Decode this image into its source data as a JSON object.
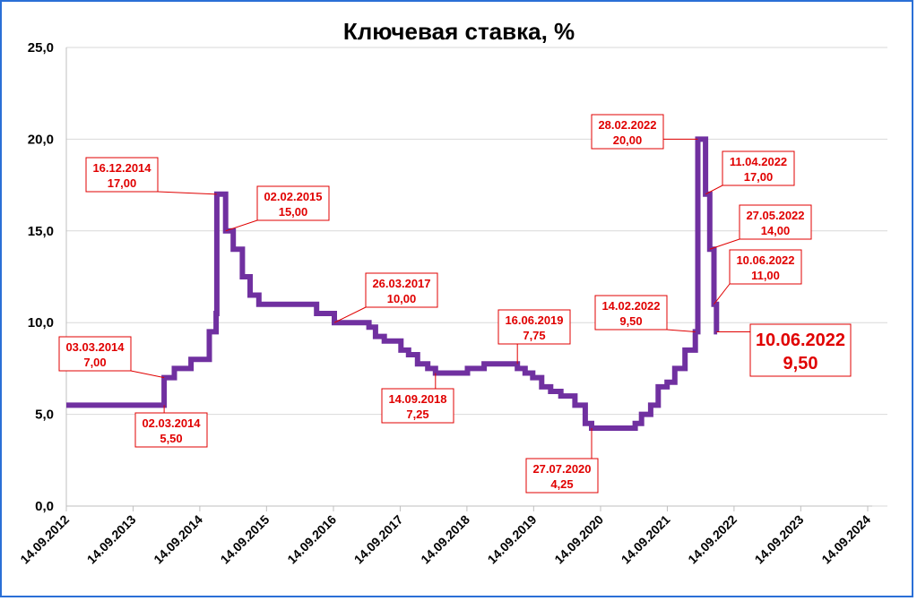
{
  "chart_data": {
    "type": "line",
    "title": "Ключевая ставка, %",
    "xlabel": "",
    "ylabel": "",
    "ylim": [
      0,
      25
    ],
    "x_range": [
      "2012-09-14",
      "2024-09-14"
    ],
    "grid": true,
    "y_ticks": [
      "0,0",
      "5,0",
      "10,0",
      "15,0",
      "20,0",
      "25,0"
    ],
    "y_tick_values": [
      0,
      5,
      10,
      15,
      20,
      25
    ],
    "x_ticks": [
      "14.09.2012",
      "14.09.2013",
      "14.09.2014",
      "14.09.2015",
      "14.09.2016",
      "14.09.2017",
      "14.09.2018",
      "14.09.2019",
      "14.09.2020",
      "14.09.2021",
      "14.09.2022",
      "14.09.2023",
      "14.09.2024"
    ],
    "x_tick_values": [
      "2012-09-14",
      "2013-09-14",
      "2014-09-14",
      "2015-09-14",
      "2016-09-14",
      "2017-09-14",
      "2018-09-14",
      "2019-09-14",
      "2020-09-14",
      "2021-09-14",
      "2022-09-14",
      "2023-09-14",
      "2024-09-14"
    ],
    "series": [
      {
        "color": "#7030a0",
        "points": [
          [
            "2012-09-14",
            5.5
          ],
          [
            "2013-09-13",
            5.5
          ],
          [
            "2014-03-03",
            7.0
          ],
          [
            "2014-04-28",
            7.5
          ],
          [
            "2014-07-28",
            8.0
          ],
          [
            "2014-11-05",
            9.5
          ],
          [
            "2014-12-12",
            10.5
          ],
          [
            "2014-12-16",
            17.0
          ],
          [
            "2015-02-02",
            15.0
          ],
          [
            "2015-03-16",
            14.0
          ],
          [
            "2015-05-05",
            12.5
          ],
          [
            "2015-06-16",
            11.5
          ],
          [
            "2015-08-03",
            11.0
          ],
          [
            "2016-06-14",
            10.5
          ],
          [
            "2016-09-19",
            10.0
          ],
          [
            "2017-03-27",
            9.75
          ],
          [
            "2017-05-02",
            9.25
          ],
          [
            "2017-06-19",
            9.0
          ],
          [
            "2017-09-18",
            8.5
          ],
          [
            "2017-10-30",
            8.25
          ],
          [
            "2017-12-18",
            7.75
          ],
          [
            "2018-02-12",
            7.5
          ],
          [
            "2018-03-26",
            7.25
          ],
          [
            "2018-09-17",
            7.5
          ],
          [
            "2018-12-17",
            7.75
          ],
          [
            "2019-06-17",
            7.5
          ],
          [
            "2019-07-29",
            7.25
          ],
          [
            "2019-09-09",
            7.0
          ],
          [
            "2019-10-28",
            6.5
          ],
          [
            "2019-12-16",
            6.25
          ],
          [
            "2020-02-10",
            6.0
          ],
          [
            "2020-04-27",
            5.5
          ],
          [
            "2020-06-22",
            4.5
          ],
          [
            "2020-07-27",
            4.25
          ],
          [
            "2021-03-22",
            4.5
          ],
          [
            "2021-04-26",
            5.0
          ],
          [
            "2021-06-15",
            5.5
          ],
          [
            "2021-07-26",
            6.5
          ],
          [
            "2021-09-13",
            6.75
          ],
          [
            "2021-10-25",
            7.5
          ],
          [
            "2021-12-20",
            8.5
          ],
          [
            "2022-02-14",
            9.5
          ],
          [
            "2022-02-28",
            20.0
          ],
          [
            "2022-04-11",
            17.0
          ],
          [
            "2022-05-04",
            14.0
          ],
          [
            "2022-05-27",
            11.0
          ],
          [
            "2022-06-10",
            9.5
          ],
          [
            "2022-06-14",
            9.5
          ]
        ]
      }
    ],
    "annotations": [
      {
        "date": "2014-03-03",
        "value": 7.0,
        "line1": "03.03.2014",
        "line2": "7,00"
      },
      {
        "date": "2014-03-03",
        "value": 5.5,
        "line1": "02.03.2014",
        "line2": "5,50"
      },
      {
        "date": "2014-12-16",
        "value": 17.0,
        "line1": "16.12.2014",
        "line2": "17,00"
      },
      {
        "date": "2015-02-02",
        "value": 15.0,
        "line1": "02.02.2015",
        "line2": "15,00"
      },
      {
        "date": "2016-09-19",
        "value": 10.0,
        "line1": "26.03.2017",
        "line2": "10,00"
      },
      {
        "date": "2018-03-26",
        "value": 7.25,
        "line1": "14.09.2018",
        "line2": "7,25"
      },
      {
        "date": "2019-06-17",
        "value": 7.75,
        "line1": "16.06.2019",
        "line2": "7,75"
      },
      {
        "date": "2020-07-27",
        "value": 4.25,
        "line1": "27.07.2020",
        "line2": "4,25"
      },
      {
        "date": "2022-02-14",
        "value": 9.5,
        "line1": "14.02.2022",
        "line2": "9,50"
      },
      {
        "date": "2022-02-28",
        "value": 20.0,
        "line1": "28.02.2022",
        "line2": "20,00"
      },
      {
        "date": "2022-04-11",
        "value": 17.0,
        "line1": "11.04.2022",
        "line2": "17,00"
      },
      {
        "date": "2022-05-04",
        "value": 14.0,
        "line1": "27.05.2022",
        "line2": "14,00"
      },
      {
        "date": "2022-05-27",
        "value": 11.0,
        "line1": "10.06.2022",
        "line2": "11,00"
      },
      {
        "date": "2022-06-10",
        "value": 9.5,
        "line1": "10.06.2022",
        "line2": "9,50",
        "emphasis": true
      }
    ]
  }
}
